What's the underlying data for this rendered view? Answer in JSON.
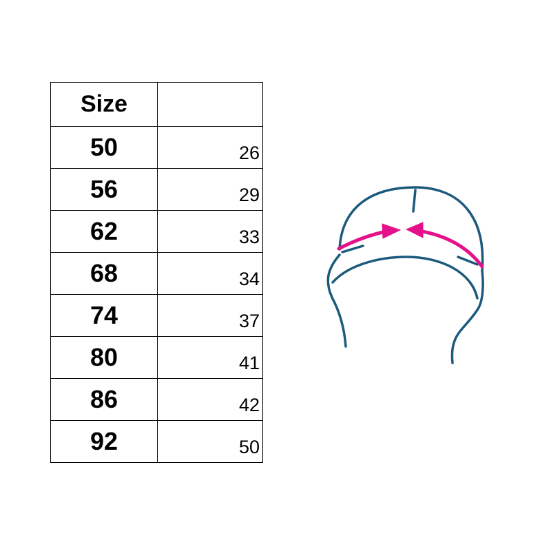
{
  "table": {
    "header": {
      "size_label": "Size",
      "value_label": ""
    },
    "rows": [
      {
        "size": "50",
        "value": "26"
      },
      {
        "size": "56",
        "value": "29"
      },
      {
        "size": "62",
        "value": "33"
      },
      {
        "size": "68",
        "value": "34"
      },
      {
        "size": "74",
        "value": "37"
      },
      {
        "size": "80",
        "value": "41"
      },
      {
        "size": "86",
        "value": "42"
      },
      {
        "size": "92",
        "value": "50"
      }
    ]
  },
  "diagram": {
    "icon": "hat-measurement-icon",
    "outline_color": "#1c5a7d",
    "arrow_color": "#e5118a"
  }
}
